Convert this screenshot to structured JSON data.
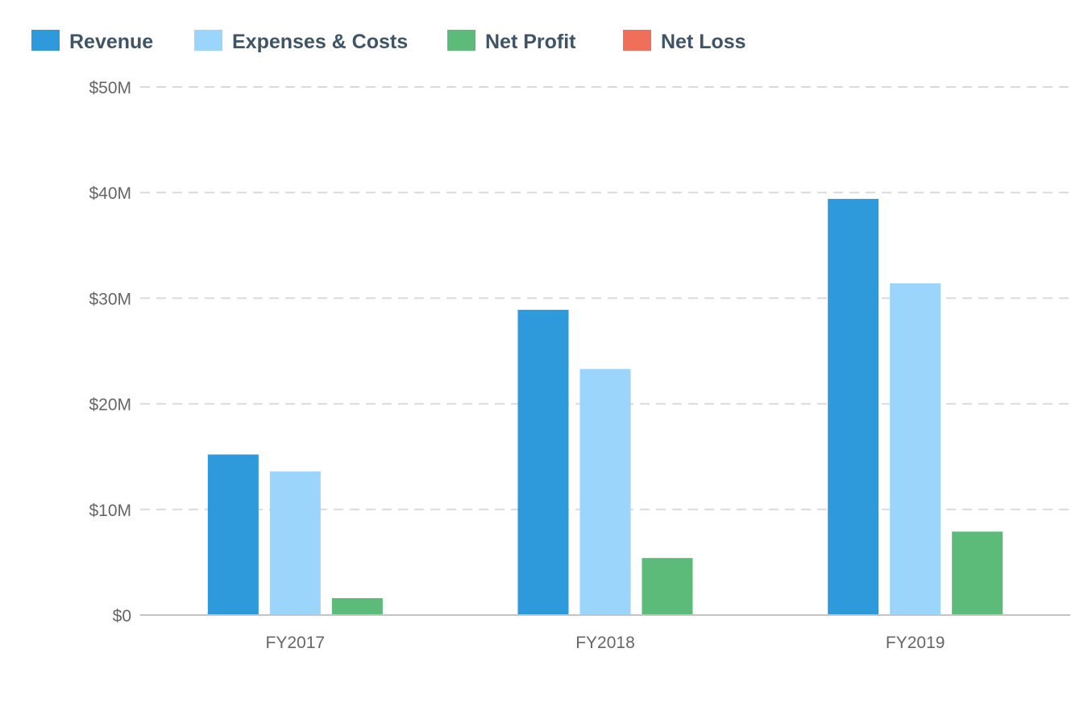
{
  "chart_data": {
    "type": "bar",
    "categories": [
      "FY2017",
      "FY2018",
      "FY2019"
    ],
    "series": [
      {
        "name": "Revenue",
        "color": "#2e9adc",
        "values": [
          15.2,
          28.9,
          39.4
        ]
      },
      {
        "name": "Expenses & Costs",
        "color": "#9bd5fb",
        "values": [
          13.6,
          23.3,
          31.4
        ]
      },
      {
        "name": "Net Profit",
        "color": "#5dbb7a",
        "values": [
          1.6,
          5.4,
          7.9
        ]
      },
      {
        "name": "Net Loss",
        "color": "#ef6f5a",
        "values": [
          0,
          0,
          0
        ]
      }
    ],
    "yticks": [
      {
        "value": 0,
        "label": "$0"
      },
      {
        "value": 10,
        "label": "$10M"
      },
      {
        "value": 20,
        "label": "$20M"
      },
      {
        "value": 30,
        "label": "$30M"
      },
      {
        "value": 40,
        "label": "$40M"
      },
      {
        "value": 50,
        "label": "$50M"
      }
    ],
    "ylim": [
      0,
      50
    ],
    "yunit": "millions of dollars",
    "grid": true,
    "legend": "top-left",
    "title": "",
    "xlabel": "",
    "ylabel": ""
  }
}
